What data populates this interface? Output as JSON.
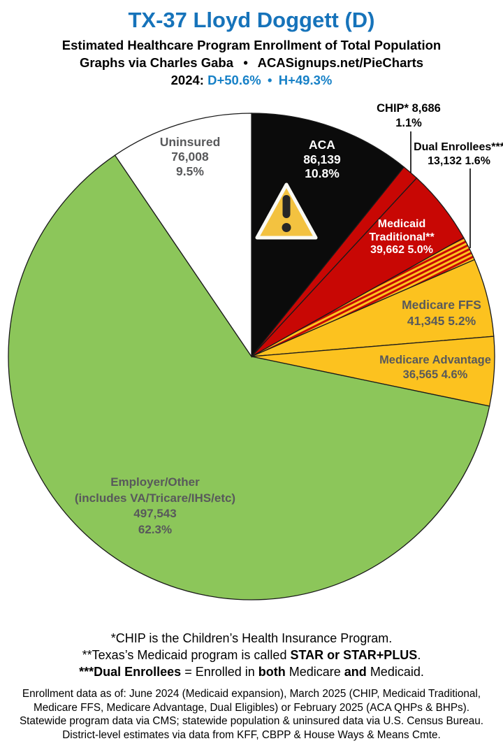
{
  "header": {
    "title": "TX-37 Lloyd Doggett (D)",
    "subtitle": "Estimated Healthcare Program Enrollment of Total Population",
    "credit": "Graphs via Charles Gaba  •  ACASignups.net/PieCharts",
    "stats_segments": [
      {
        "text": "2024: ",
        "color": "#000000"
      },
      {
        "text": "D+50.6%",
        "color": "#1781C7"
      },
      {
        "text": " • ",
        "color": "#1781C7"
      },
      {
        "text": "H+49.3%",
        "color": "#1781C7"
      }
    ]
  },
  "colors": {
    "title_blue": "#1673BA",
    "stats_blue": "#1781C7",
    "label_gray": "#58595B",
    "slice_outline": "#1a1a1a"
  },
  "chart_data": {
    "type": "pie",
    "title": "Estimated Healthcare Program Enrollment of Total Population",
    "units": "people",
    "direction": "clockwise",
    "start_angle_deg": 0,
    "legend_position": "none",
    "stripe_colors": {
      "red": "#C80704",
      "yellow": "#FCC21F"
    },
    "slices": [
      {
        "id": "aca",
        "name": "ACA",
        "enrollment": "86,139",
        "value": 86139,
        "percent": 10.8,
        "percent_label": "10.8%",
        "color": "#0B0B0B",
        "label_color": "#FFFFFF"
      },
      {
        "id": "chip",
        "name": "CHIP*",
        "enrollment": "8,686",
        "value": 8686,
        "percent": 1.1,
        "percent_label": "1.1%",
        "color": "#C80704",
        "label_color": "#000000"
      },
      {
        "id": "medicaid",
        "name": "Medicaid Traditional**",
        "enrollment": "39,662",
        "value": 39662,
        "percent": 5.0,
        "percent_label": "5.0%",
        "color": "#C80704",
        "label_color": "#FFFFFF"
      },
      {
        "id": "dual",
        "name": "Dual Enrollees***",
        "enrollment": "13,132",
        "value": 13132,
        "percent": 1.6,
        "percent_label": "1.6%",
        "color": "stripes",
        "label_color": "#000000"
      },
      {
        "id": "ffs",
        "name": "Medicare FFS",
        "enrollment": "41,345",
        "value": 41345,
        "percent": 5.2,
        "percent_label": "5.2%",
        "color": "#FCC21F",
        "label_color": "#58595B"
      },
      {
        "id": "advantage",
        "name": "Medicare Advantage",
        "enrollment": "36,565",
        "value": 36565,
        "percent": 4.6,
        "percent_label": "4.6%",
        "color": "#FCC21F",
        "label_color": "#58595B"
      },
      {
        "id": "employer",
        "name": "Employer/Other (includes VA/Tricare/IHS/etc)",
        "enrollment": "497,543",
        "value": 497543,
        "percent": 62.3,
        "percent_label": "62.3%",
        "color": "#8CC65A",
        "label_color": "#58595B"
      },
      {
        "id": "uninsured",
        "name": "Uninsured",
        "enrollment": "76,008",
        "value": 76008,
        "percent": 9.5,
        "percent_label": "9.5%",
        "color": "#FFFFFF",
        "label_color": "#58595B"
      }
    ],
    "annotations": [
      {
        "id": "warning-icon",
        "description": "warning triangle with exclamation mark on ACA slice",
        "fill": "#F3C240",
        "glyph_color": "#262626"
      }
    ]
  },
  "footnotes": {
    "lines": [
      [
        {
          "text": "*CHIP is the Children’s Health Insurance Program.",
          "bold": false
        }
      ],
      [
        {
          "text": "**Texas’s Medicaid program is called ",
          "bold": false
        },
        {
          "text": "STAR or STAR+PLUS",
          "bold": true
        },
        {
          "text": ".",
          "bold": false
        }
      ],
      [
        {
          "text": "***Dual Enrollees",
          "bold": true
        },
        {
          "text": " = Enrolled in ",
          "bold": false
        },
        {
          "text": "both",
          "bold": true
        },
        {
          "text": " Medicare ",
          "bold": false
        },
        {
          "text": "and",
          "bold": true
        },
        {
          "text": " Medicaid.",
          "bold": false
        }
      ]
    ]
  },
  "source_note": {
    "lines": [
      "Enrollment data as of: June 2024 (Medicaid expansion), March 2025 (CHIP, Medicaid Traditional,",
      "Medicare FFS, Medicare Advantage, Dual Eligibles) or February 2025 (ACA QHPs & BHPs).",
      "Statewide program data via CMS; statewide population & uninsured data via U.S. Census Bureau.",
      "District-level estimates via data from KFF, CBPP & House Ways & Means Cmte."
    ]
  }
}
